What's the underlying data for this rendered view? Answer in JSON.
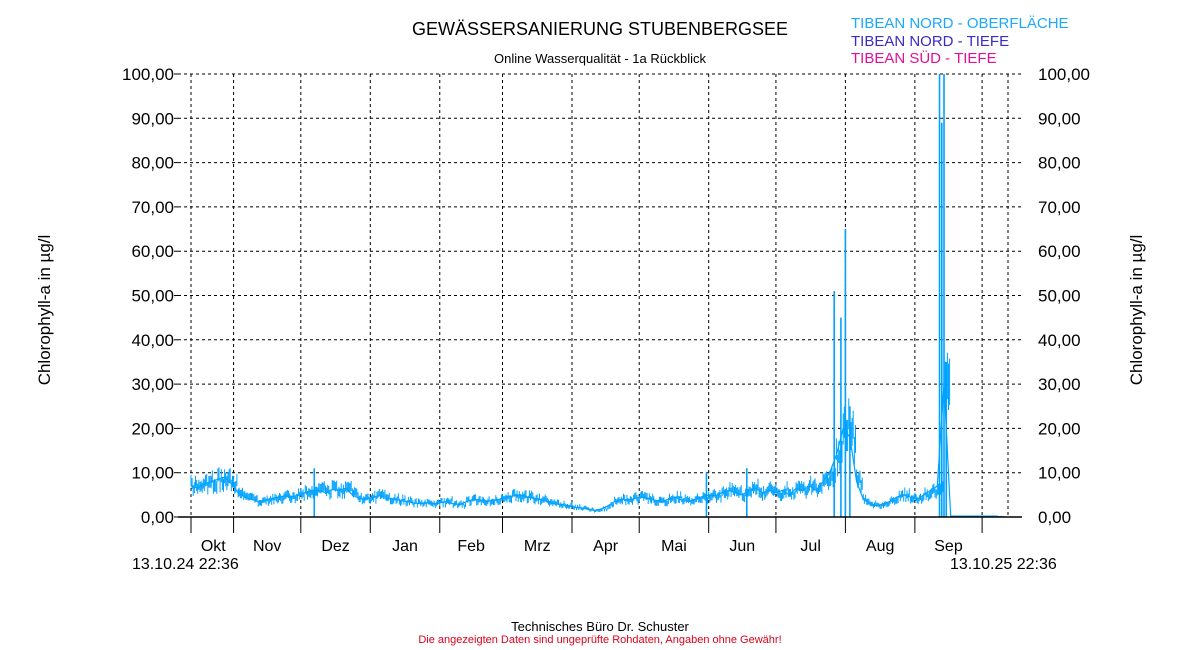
{
  "title": "GEWÄSSERSANIERUNG STUBENBERGSEE",
  "subtitle": "Online Wasserqualität - 1a Rückblick",
  "legend": [
    {
      "label": "TIBEAN NORD - OBERFLÄCHE",
      "color": "#1ea7ff"
    },
    {
      "label": "TIBEAN NORD - TIEFE",
      "color": "#3a2cc4"
    },
    {
      "label": "TIBEAN SÜD    - TIEFE",
      "color": "#e0109a"
    }
  ],
  "footer": {
    "company": "Technisches Büro Dr. Schuster",
    "disclaimer": "Die angezeigten Daten sind ungeprüfte Rohdaten, Angaben ohne Gewähr!"
  },
  "chart_data": {
    "type": "line",
    "title": "GEWÄSSERSANIERUNG STUBENBERGSEE",
    "ylabel": "Chlorophyll-a in µg/l",
    "ylabel_right": "Chlorophyll-a in µg/l",
    "ylim": [
      0,
      100
    ],
    "yticks": [
      "0,00",
      "10,00",
      "20,00",
      "30,00",
      "40,00",
      "50,00",
      "60,00",
      "70,00",
      "80,00",
      "90,00",
      "100,00"
    ],
    "x_start_label": "13.10.24 22:36",
    "x_end_label": "13.10.25 22:36",
    "x_range_days": [
      0,
      365
    ],
    "months": [
      {
        "label": "Okt",
        "start_day": 0,
        "end_day": 19
      },
      {
        "label": "Nov",
        "start_day": 19,
        "end_day": 49
      },
      {
        "label": "Dez",
        "start_day": 49,
        "end_day": 80
      },
      {
        "label": "Jan",
        "start_day": 80,
        "end_day": 111
      },
      {
        "label": "Feb",
        "start_day": 111,
        "end_day": 139
      },
      {
        "label": "Mrz",
        "start_day": 139,
        "end_day": 170
      },
      {
        "label": "Apr",
        "start_day": 170,
        "end_day": 200
      },
      {
        "label": "Mai",
        "start_day": 200,
        "end_day": 231
      },
      {
        "label": "Jun",
        "start_day": 231,
        "end_day": 261
      },
      {
        "label": "Jul",
        "start_day": 261,
        "end_day": 292
      },
      {
        "label": "Aug",
        "start_day": 292,
        "end_day": 323
      },
      {
        "label": "Sep",
        "start_day": 323,
        "end_day": 353
      }
    ],
    "grid": true,
    "series": [
      {
        "name": "TIBEAN NORD - OBERFLÄCHE",
        "color": "#00a2ff",
        "step_days": 3,
        "values": [
          7,
          6.5,
          7.5,
          8,
          8.5,
          9,
          7.5,
          5.5,
          4.5,
          4,
          3.5,
          3.8,
          4.2,
          4.5,
          4.8,
          4.5,
          5,
          5.5,
          5.8,
          6,
          5.5,
          6.2,
          6,
          6.5,
          5,
          4.2,
          4,
          4.5,
          4.8,
          4.2,
          4,
          3.8,
          3.5,
          3.2,
          3,
          3.2,
          3,
          3.2,
          3.5,
          3,
          2.8,
          3.5,
          4,
          3.8,
          3.5,
          3.8,
          4,
          4.5,
          4.8,
          5,
          4.5,
          4.2,
          4,
          3.5,
          3,
          2.8,
          2.5,
          2.2,
          2,
          1.8,
          1.5,
          1.8,
          2.5,
          3.5,
          4,
          3.8,
          4.2,
          4.5,
          4.2,
          3.8,
          3.5,
          4,
          4.5,
          3.8,
          3.5,
          4,
          4.5,
          5,
          4.8,
          5.5,
          6,
          5.5,
          5,
          6,
          6.5,
          5.5,
          6,
          5.5,
          6,
          5,
          6.5,
          6,
          7,
          6,
          8,
          10,
          14,
          20,
          18,
          8,
          4,
          3,
          2.5,
          3,
          3.5,
          4.5,
          5,
          4.5,
          4,
          5,
          6,
          7,
          30,
          0.2,
          0.2,
          0.2,
          0.2,
          0.2,
          0.2,
          0.2,
          0.2
        ],
        "spikes": [
          {
            "day": 230,
            "value": 10
          },
          {
            "day": 248,
            "value": 11
          },
          {
            "day": 55,
            "value": 11
          },
          {
            "day": 287,
            "value": 51
          },
          {
            "day": 290,
            "value": 45
          },
          {
            "day": 292,
            "value": 65
          },
          {
            "day": 294,
            "value": 25
          },
          {
            "day": 334,
            "value": 100
          },
          {
            "day": 335,
            "value": 89
          },
          {
            "day": 336,
            "value": 100
          },
          {
            "day": 337,
            "value": 35
          }
        ]
      }
    ]
  }
}
